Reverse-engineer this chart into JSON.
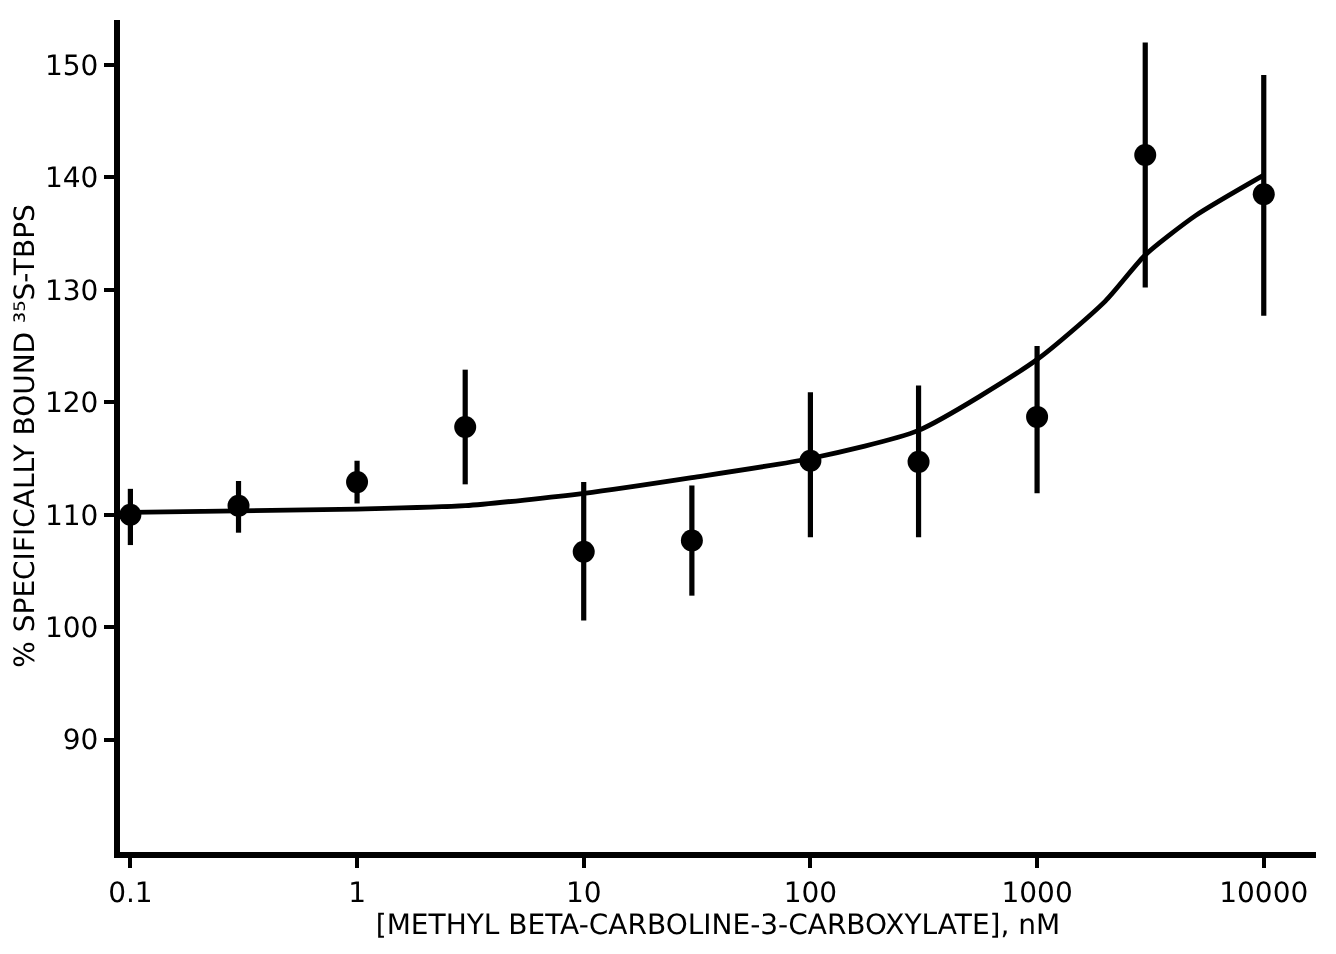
{
  "chart_data": {
    "type": "scatter",
    "xlabel": "[METHYL BETA-CARBOLINE-3-CARBOXYLATE], nM",
    "ylabel": "% SPECIFICALLY BOUND ³⁵S-TBPS",
    "log": "x",
    "xlim": [
      0.09,
      17000
    ],
    "xticks": [
      0.1,
      1,
      10,
      100,
      1000,
      10000
    ],
    "ylim": [
      80,
      154
    ],
    "yticks": [
      90,
      100,
      110,
      120,
      130,
      140,
      150
    ],
    "series": [
      {
        "color": "#000000",
        "marker": "circle",
        "x": [
          0.1,
          0.3,
          1,
          3,
          10,
          30,
          100,
          300,
          1000,
          3000,
          10000
        ],
        "values": [
          110,
          110.8,
          112.9,
          117.8,
          106.7,
          107.7,
          114.8,
          114.7,
          118.7,
          142,
          138.5
        ],
        "errors": [
          [
            107.3,
            112.3
          ],
          [
            108.4,
            113
          ],
          [
            111,
            114.8
          ],
          [
            112.7,
            122.9
          ],
          [
            100.6,
            112.9
          ],
          [
            102.8,
            112.6
          ],
          [
            108,
            120.9
          ],
          [
            108,
            121.5
          ],
          [
            111.9,
            125
          ],
          [
            130.2,
            152
          ],
          [
            127.7,
            149.1
          ]
        ]
      },
      {
        "type": "line",
        "color": "#000000",
        "marker": "none",
        "line_style": "solid",
        "x": [
          0.1,
          1,
          3,
          10,
          30,
          100,
          300,
          1000,
          2000,
          3000,
          5000,
          10000
        ],
        "values": [
          110.2,
          110.5,
          110.8,
          111.9,
          113.3,
          115,
          117.5,
          123.8,
          129,
          133.1,
          136.6,
          140.2
        ]
      }
    ]
  }
}
